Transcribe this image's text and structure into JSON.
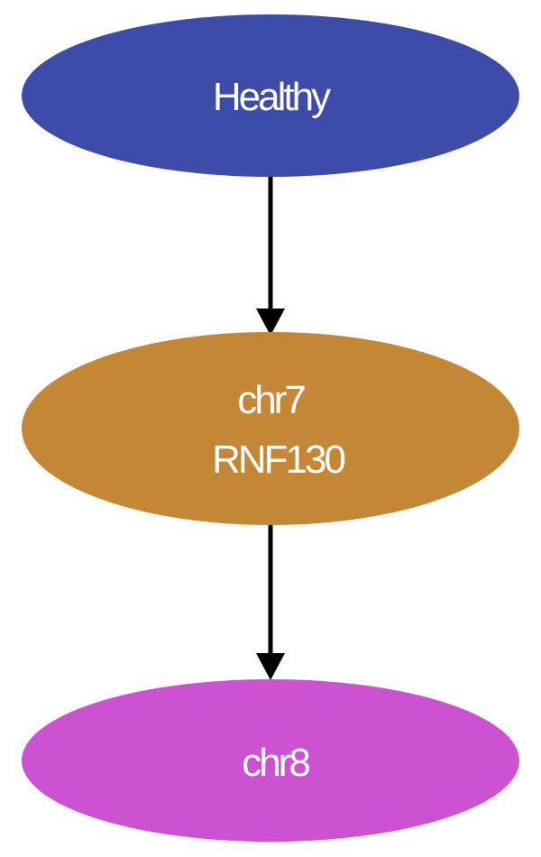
{
  "nodes": {
    "healthy": {
      "lines": [
        "Healthy"
      ],
      "color": "#3c4ca8"
    },
    "chr7": {
      "lines": [
        "chr7",
        "RNF130"
      ],
      "color": "#c48736"
    },
    "chr8": {
      "lines": [
        "chr8"
      ],
      "color": "#cc52d1"
    }
  },
  "edges": [
    {
      "from": "healthy",
      "to": "chr7"
    },
    {
      "from": "chr7",
      "to": "chr8"
    }
  ],
  "edge_color": "#000000"
}
